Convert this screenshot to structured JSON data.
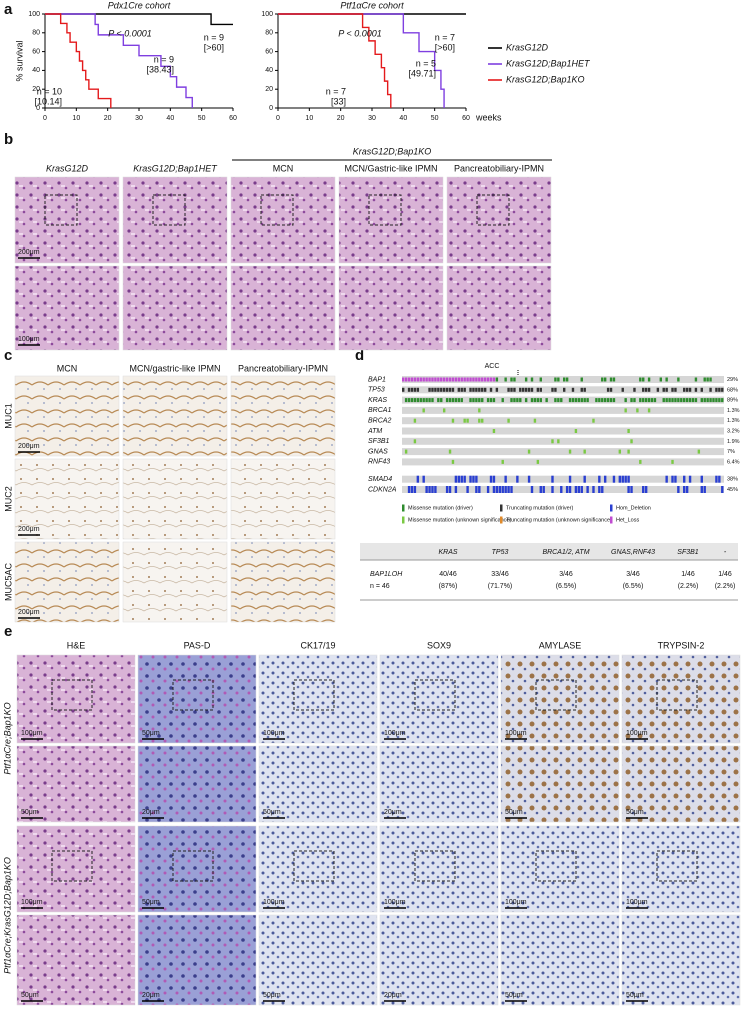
{
  "panel_labels": [
    "a",
    "b",
    "c",
    "d",
    "e"
  ],
  "chart_data": [
    {
      "type": "line",
      "title": "Pdx1Cre cohort",
      "y_label": "% survival",
      "step": true,
      "xlim": [
        0,
        60
      ],
      "ylim": [
        0,
        100
      ],
      "xticks": [
        0,
        10,
        20,
        30,
        40,
        50,
        60
      ],
      "yticks": [
        0,
        20,
        40,
        60,
        80,
        100
      ],
      "series": [
        {
          "name": "KrasG12D",
          "color": "#000000",
          "x": [
            0,
            53,
            60
          ],
          "values": [
            100,
            88.9,
            88.9
          ]
        },
        {
          "name": "KrasG12D;Bap1HET",
          "color": "#7f3fe0",
          "x": [
            0,
            16,
            17,
            25,
            30,
            37,
            40,
            42,
            45,
            47
          ],
          "values": [
            100,
            88.9,
            77.8,
            66.7,
            55.6,
            44.4,
            33.3,
            22.2,
            11.1,
            0
          ]
        },
        {
          "name": "KrasG12D;Bap1KO",
          "color": "#e41a1c",
          "x": [
            0,
            5,
            7,
            8,
            10,
            11,
            12,
            13,
            14,
            17,
            21
          ],
          "values": [
            100,
            90,
            80,
            70,
            60,
            50,
            40,
            30,
            20,
            10,
            0
          ]
        }
      ],
      "annotations": [
        {
          "text": "P < 0.0001",
          "color": "#000000"
        },
        {
          "text": "n = 9",
          "color": "#000000"
        },
        {
          "text": "[>60]",
          "color": "#000000"
        },
        {
          "text": "n = 9",
          "color": "#7f3fe0"
        },
        {
          "text": "[38.43]",
          "color": "#7f3fe0"
        },
        {
          "text": "n = 10",
          "color": "#e41a1c"
        },
        {
          "text": "[10.14]",
          "color": "#e41a1c"
        }
      ]
    },
    {
      "type": "line",
      "title": "Ptf1αCre cohort",
      "x_label": "weeks",
      "step": true,
      "xlim": [
        0,
        60
      ],
      "ylim": [
        0,
        100
      ],
      "xticks": [
        0,
        10,
        20,
        30,
        40,
        50,
        60
      ],
      "yticks": [
        0,
        20,
        40,
        60,
        80,
        100
      ],
      "series": [
        {
          "name": "KrasG12D",
          "color": "#000000",
          "x": [
            0,
            60
          ],
          "values": [
            100,
            100
          ]
        },
        {
          "name": "KrasG12D;Bap1HET",
          "color": "#7f3fe0",
          "x": [
            0,
            40,
            45,
            50,
            52,
            53
          ],
          "values": [
            100,
            80,
            60,
            40,
            20,
            0
          ]
        },
        {
          "name": "KrasG12D;Bap1KO",
          "color": "#e41a1c",
          "x": [
            0,
            27,
            29,
            31,
            33,
            34,
            35,
            36
          ],
          "values": [
            100,
            85.7,
            71.4,
            57.1,
            42.9,
            28.6,
            14.3,
            0
          ]
        }
      ],
      "annotations": [
        {
          "text": "P < 0.0001",
          "color": "#000000"
        },
        {
          "text": "n = 7",
          "color": "#000000"
        },
        {
          "text": "[>60]",
          "color": "#000000"
        },
        {
          "text": "n = 5",
          "color": "#7f3fe0"
        },
        {
          "text": "[49.71]",
          "color": "#7f3fe0"
        },
        {
          "text": "n = 7",
          "color": "#e41a1c"
        },
        {
          "text": "[33]",
          "color": "#e41a1c"
        }
      ]
    }
  ],
  "panel_b": {
    "group_header": "KrasG12D;Bap1KO",
    "columns": [
      "KrasG12D",
      "KrasG12D;Bap1HET",
      "MCN",
      "MCN/Gastric-like IPMN",
      "Pancreatobiliary-IPMN"
    ],
    "scale_bars": [
      "200μm",
      "100μm"
    ]
  },
  "panel_c": {
    "columns": [
      "MCN",
      "MCN/gastric-like IPMN",
      "Pancreatobiliary-IPMN"
    ],
    "rows": [
      "MUC1",
      "MUC2",
      "MUC5AC"
    ],
    "scale_bars": [
      "200μm",
      "200μm",
      "200μm"
    ]
  },
  "panel_d": {
    "title": "ACC",
    "genes": [
      {
        "name": "BAP1",
        "percent": "29%"
      },
      {
        "name": "TP53",
        "percent": "68%"
      },
      {
        "name": "KRAS",
        "percent": "89%"
      },
      {
        "name": "BRCA1",
        "percent": "1.3%"
      },
      {
        "name": "BRCA2",
        "percent": "1.3%"
      },
      {
        "name": "ATM",
        "percent": "3.2%"
      },
      {
        "name": "SF3B1",
        "percent": "1.9%"
      },
      {
        "name": "GNAS",
        "percent": "7%"
      },
      {
        "name": "RNF43",
        "percent": "6.4%"
      },
      {
        "name": "SMAD4",
        "percent": "38%"
      },
      {
        "name": "CDKN2A",
        "percent": "45%"
      }
    ],
    "legend": [
      "Missense mutation (driver)",
      "Truncating mutation (driver)",
      "Hom_Deletion",
      "Missense mutation (unknown significance)",
      "Truncating mutation (unknown significance)",
      "Het_Loss"
    ],
    "table": {
      "header": [
        "KRAS",
        "TP53",
        "BRCA1/2, ATM",
        "GNAS,RNF43",
        "SF3B1",
        "-"
      ],
      "row_label": [
        "BAP1LOH",
        "n = 46"
      ],
      "cells": [
        [
          "40/46",
          "(87%)"
        ],
        [
          "33/46",
          "(71.7%)"
        ],
        [
          "3/46",
          "(6.5%)"
        ],
        [
          "3/46",
          "(6.5%)"
        ],
        [
          "1/46",
          "(2.2%)"
        ],
        [
          "1/46",
          "(2.2%)"
        ]
      ]
    }
  },
  "panel_e": {
    "columns": [
      "H&E",
      "PAS-D",
      "CK17/19",
      "SOX9",
      "AMYLASE",
      "TRYPSIN-2"
    ],
    "rows": [
      "Ptf1αCre;Bap1KO",
      "Ptf1αCre;KrasG12D;Bap1KO"
    ],
    "scale_bars": [
      [
        "100μm",
        "50μm",
        "100μm",
        "100μm",
        "100μm",
        "100μm"
      ],
      [
        "50μm",
        "20μm",
        "50μm",
        "20μm",
        "50μm",
        "50μm"
      ],
      [
        "100μm",
        "50μm",
        "100μm",
        "100μm",
        "100μm",
        "100μm"
      ],
      [
        "50μm",
        "20μm",
        "50μm",
        "20μm",
        "50μm",
        "50μm"
      ]
    ]
  }
}
